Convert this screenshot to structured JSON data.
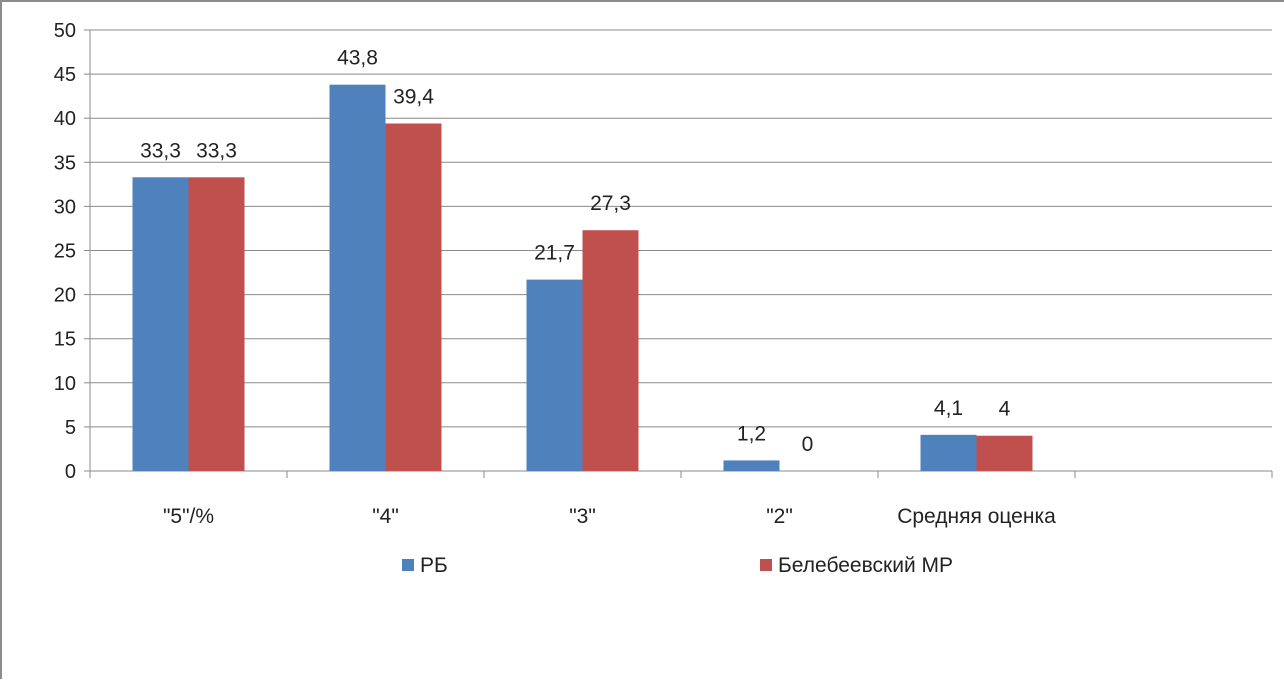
{
  "chart_data": {
    "type": "bar",
    "categories": [
      "\"5\"/%",
      "\"4\"",
      "\"3\"",
      "\"2\"",
      "Средняя оценка",
      ""
    ],
    "series": [
      {
        "name": "РБ",
        "color": "#4f81bd",
        "values": [
          33.3,
          43.8,
          21.7,
          1.2,
          4.1,
          null
        ],
        "labels": [
          "33,3",
          "43,8",
          "21,7",
          "1,2",
          "4,1",
          ""
        ]
      },
      {
        "name": "Белебеевский МР",
        "color": "#c0504d",
        "values": [
          33.3,
          39.4,
          27.3,
          0,
          4,
          null
        ],
        "labels": [
          "33,3",
          "39,4",
          "27,3",
          "0",
          "4",
          ""
        ]
      }
    ],
    "ylim": [
      0,
      50
    ],
    "yticks": [
      0,
      5,
      10,
      15,
      20,
      25,
      30,
      35,
      40,
      45,
      50
    ],
    "grid": true,
    "legend_position": "bottom",
    "title": "",
    "xlabel": "",
    "ylabel": ""
  }
}
